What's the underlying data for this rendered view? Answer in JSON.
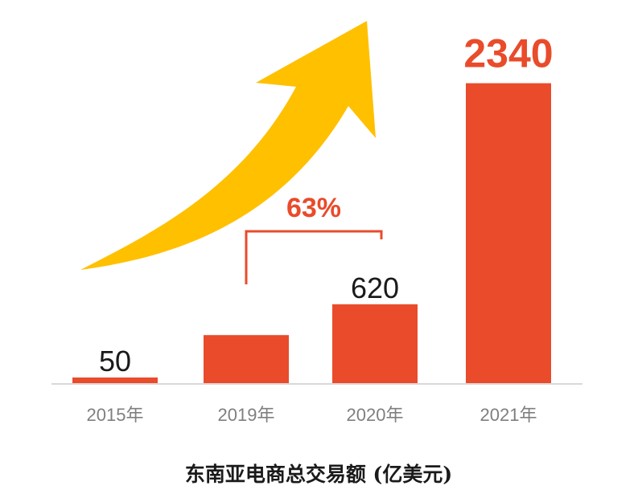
{
  "chart_data": {
    "type": "bar",
    "title": "东南亚电商总交易额 (亿美元)",
    "categories": [
      "2015年",
      "2019年",
      "2020年",
      "2021年"
    ],
    "values": [
      50,
      380,
      620,
      2340
    ],
    "value_labels": [
      "50",
      "",
      "620",
      "2340"
    ],
    "ylim": [
      0,
      2500
    ],
    "grid": false,
    "legend": "none",
    "annotation": {
      "text": "63%",
      "from_category": "2019年",
      "to_category": "2020年"
    },
    "trend_arrow": "up-right",
    "colors": {
      "bar": "#e94b2b",
      "highlight_label": "#e94b2b",
      "annotation": "#e94b2b",
      "arrow": "#ffc000",
      "axis": "#d9d9d9"
    }
  }
}
